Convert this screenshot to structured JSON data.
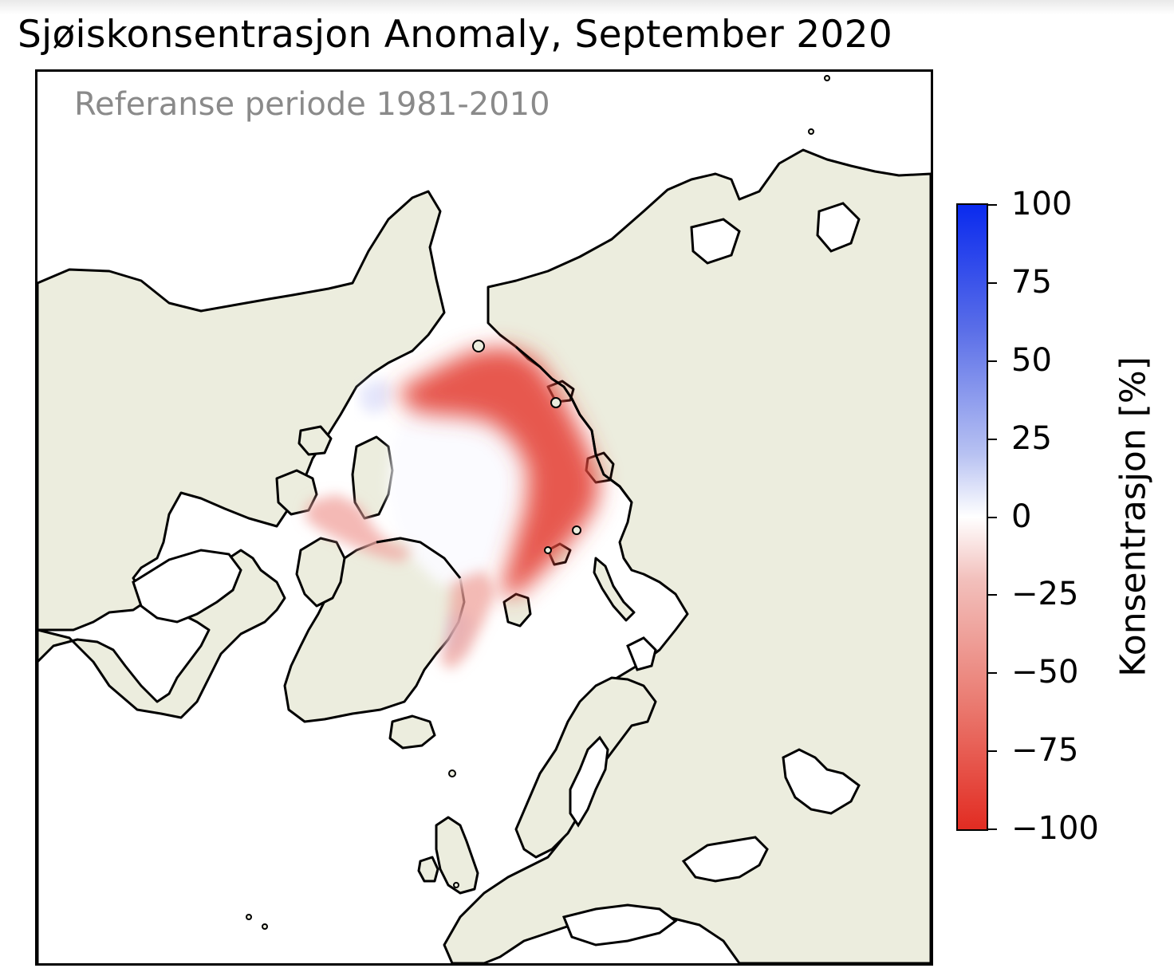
{
  "title": "Sjøiskonsentrasjon Anomaly, September 2020",
  "map": {
    "subtitle": "Referanse periode 1981-2010",
    "projection": "north-polar-stereographic",
    "land_color": "#ecedde",
    "ocean_color": "#ffffff",
    "coastline_color": "#000000"
  },
  "colorbar": {
    "label": "Konsentrasjon [%]",
    "range": [
      -100,
      100
    ],
    "colormap": "bwr-reversed",
    "high_color": "#0a2aee",
    "mid_color": "#ffffff",
    "low_color": "#e22c22",
    "ticks": [
      "100",
      "75",
      "50",
      "25",
      "0",
      "−25",
      "−50",
      "−75",
      "−100"
    ]
  }
}
